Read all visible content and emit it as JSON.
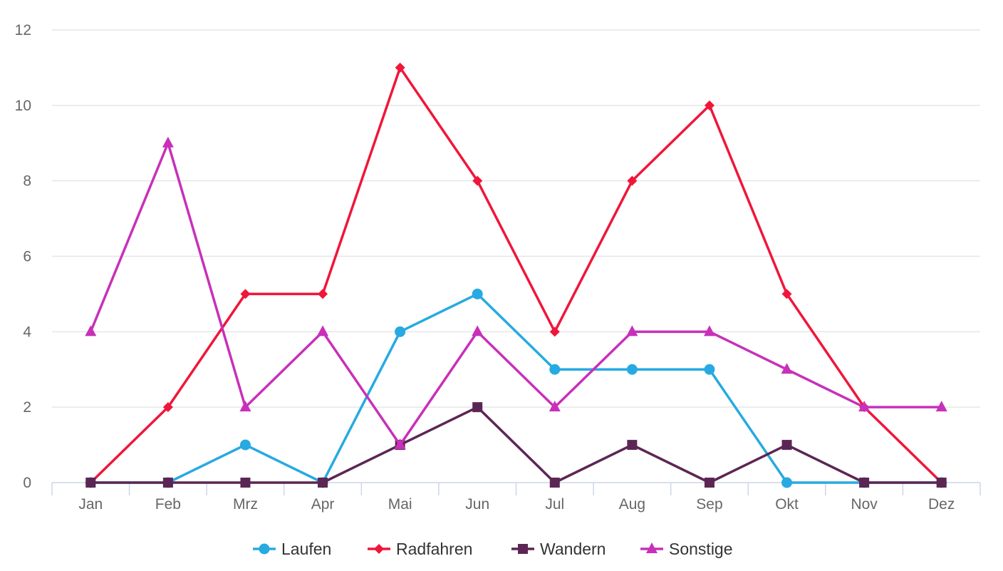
{
  "chart_data": {
    "type": "line",
    "title": "",
    "xlabel": "",
    "ylabel": "",
    "categories": [
      "Jan",
      "Feb",
      "Mrz",
      "Apr",
      "Mai",
      "Jun",
      "Jul",
      "Aug",
      "Sep",
      "Okt",
      "Nov",
      "Dez"
    ],
    "ylim": [
      0,
      12
    ],
    "yticks": [
      0,
      2,
      4,
      6,
      8,
      10,
      12
    ],
    "grid": true,
    "legend_position": "bottom",
    "series": [
      {
        "name": "Laufen",
        "color": "#27aae1",
        "marker": "circle",
        "values": [
          0,
          0,
          1,
          0,
          4,
          5,
          3,
          3,
          3,
          0,
          0,
          0
        ]
      },
      {
        "name": "Radfahren",
        "color": "#f0163a",
        "marker": "diamond",
        "values": [
          0,
          2,
          5,
          5,
          11,
          8,
          4,
          8,
          10,
          5,
          2,
          0
        ]
      },
      {
        "name": "Wandern",
        "color": "#5c2654",
        "marker": "square",
        "values": [
          0,
          0,
          0,
          0,
          1,
          2,
          0,
          1,
          0,
          1,
          0,
          0
        ]
      },
      {
        "name": "Sonstige",
        "color": "#c830b9",
        "marker": "triangle",
        "values": [
          4,
          9,
          2,
          4,
          1,
          4,
          2,
          4,
          4,
          3,
          2,
          2
        ]
      }
    ]
  }
}
